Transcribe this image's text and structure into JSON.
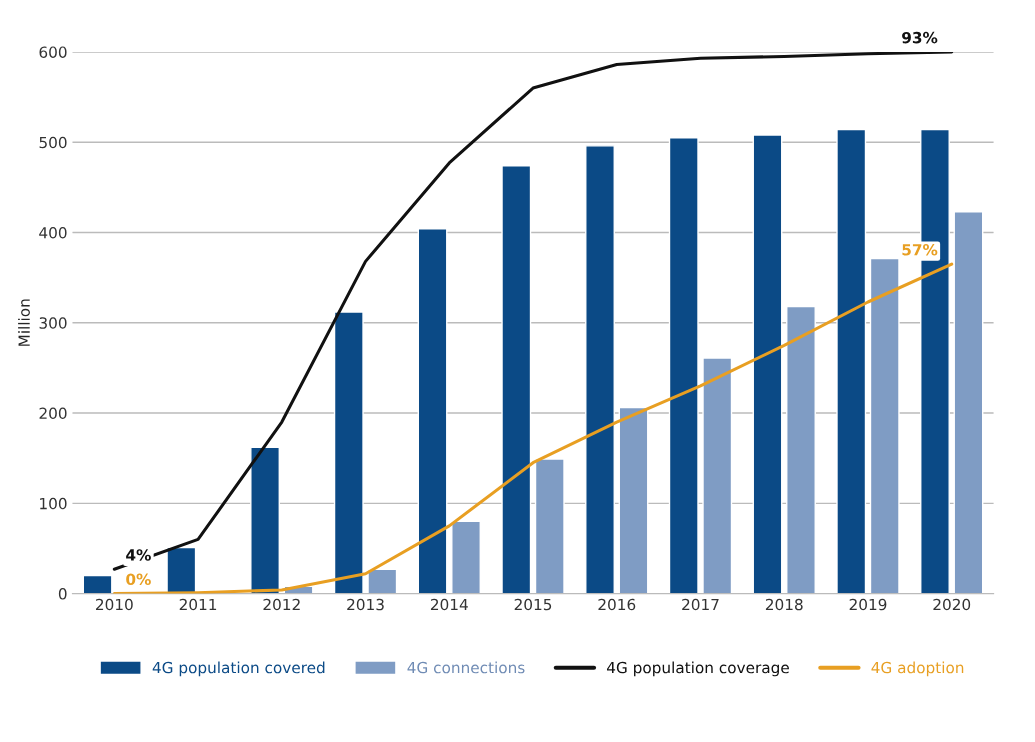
{
  "chart_data": {
    "type": "bar",
    "ylabel": "Million",
    "categories": [
      "2010",
      "2011",
      "2012",
      "2013",
      "2014",
      "2015",
      "2016",
      "2017",
      "2018",
      "2019",
      "2020"
    ],
    "series": [
      {
        "name": "4G population covered",
        "color": "#0b4a86",
        "values": [
          20,
          51,
          162,
          312,
          404,
          474,
          496,
          505,
          508,
          514,
          514
        ]
      },
      {
        "name": "4G connections",
        "color": "#7f9cc4",
        "values": [
          null,
          null,
          8,
          27,
          80,
          149,
          206,
          261,
          318,
          371,
          423
        ]
      },
      {
        "name": "4G population coverage",
        "type": "line",
        "color": "#111111",
        "values": [
          27,
          60,
          190,
          368,
          477,
          560,
          586,
          593,
          595,
          598,
          600
        ]
      },
      {
        "name": "4G adoption",
        "type": "line",
        "color": "#e89f22",
        "values": [
          0,
          1,
          4,
          22,
          75,
          145,
          190,
          230,
          275,
          323,
          365
        ]
      }
    ],
    "ylim": [
      0,
      600
    ],
    "yticks": [
      0,
      100,
      200,
      300,
      400,
      500,
      600
    ],
    "grid": "y",
    "legend": "bottom",
    "marker": "none",
    "line_style": "solid",
    "annotations": [
      {
        "text": "4%",
        "x": "2010",
        "y": 27
      },
      {
        "text": "0%",
        "x": "2010",
        "y": 0
      },
      {
        "text": "93%",
        "x": "2020",
        "y": 600
      },
      {
        "text": "57%",
        "x": "2020",
        "y": 365
      }
    ]
  }
}
